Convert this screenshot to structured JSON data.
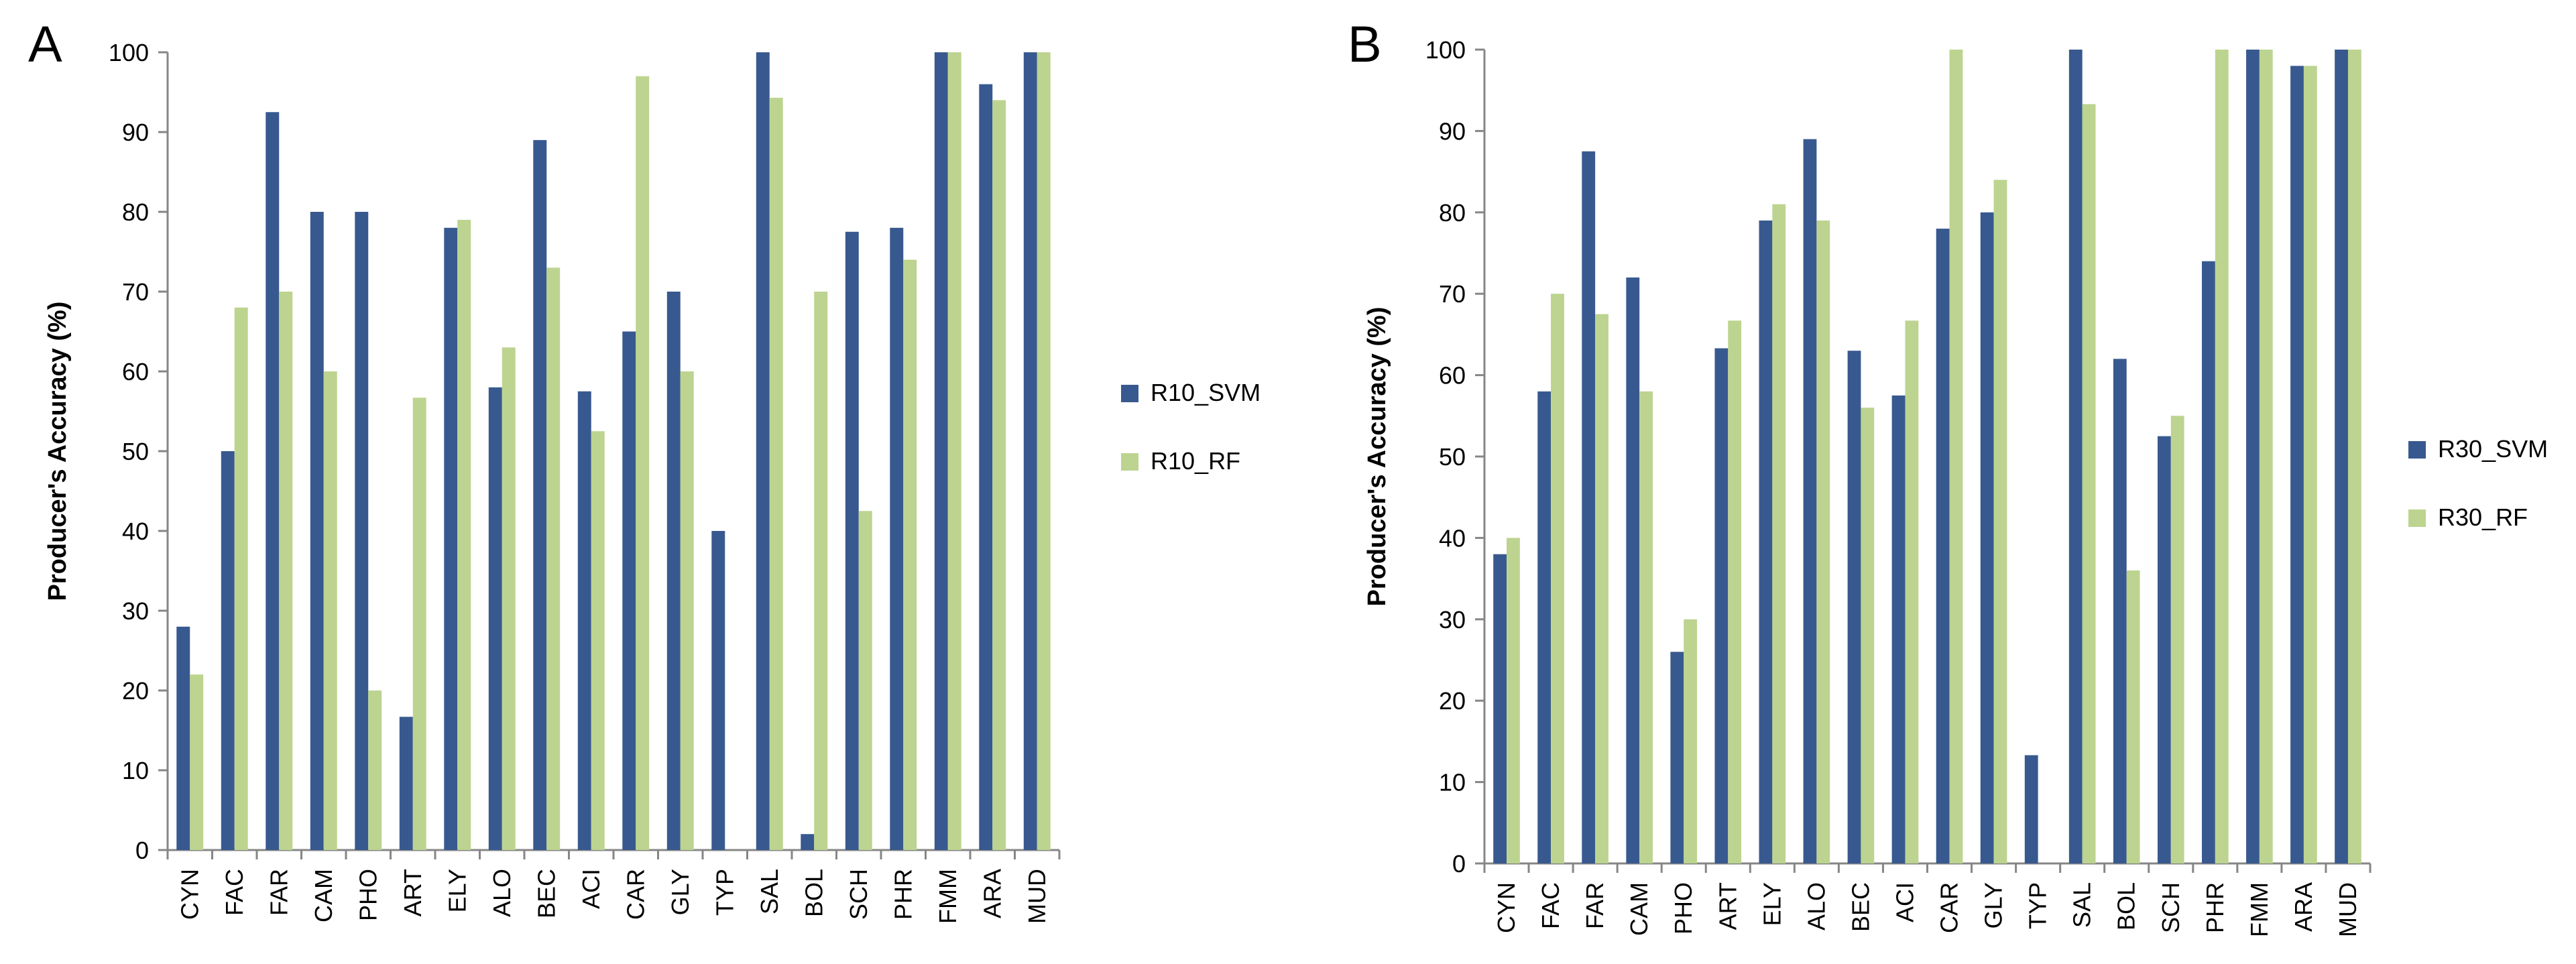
{
  "colors": {
    "svm": "#38598F",
    "rf": "#BCD48F",
    "axis": "#868686"
  },
  "chart_data": [
    {
      "panel": "A",
      "type": "bar",
      "ylabel": "Producer's Accuracy (%)",
      "xlabel": "",
      "ylim": [
        0,
        100
      ],
      "yticks": [
        0,
        10,
        20,
        30,
        40,
        50,
        60,
        70,
        80,
        90,
        100
      ],
      "legend_position": "right",
      "categories": [
        "CYN",
        "FAC",
        "FAR",
        "CAM",
        "PHO",
        "ART",
        "ELY",
        "ALO",
        "BEC",
        "ACI",
        "CAR",
        "GLY",
        "TYP",
        "SAL",
        "BOL",
        "SCH",
        "PHR",
        "FMM",
        "ARA",
        "MUD"
      ],
      "series": [
        {
          "name": "R10_SVM",
          "values": [
            28,
            50,
            92.5,
            80,
            80,
            16.7,
            78,
            58,
            89,
            57.5,
            65,
            70,
            40,
            100,
            2,
            77.5,
            78,
            100,
            96,
            100
          ]
        },
        {
          "name": "R10_RF",
          "values": [
            22,
            68,
            70,
            60,
            20,
            56.7,
            79,
            63,
            73,
            52.5,
            97,
            60,
            0,
            94.3,
            70,
            42.5,
            74,
            100,
            94,
            100
          ]
        }
      ]
    },
    {
      "panel": "B",
      "type": "bar",
      "ylabel": "Producer's Accuracy (%)",
      "xlabel": "",
      "ylim": [
        0,
        100
      ],
      "yticks": [
        0,
        10,
        20,
        30,
        40,
        50,
        60,
        70,
        80,
        90,
        100
      ],
      "legend_position": "right",
      "categories": [
        "CYN",
        "FAC",
        "FAR",
        "CAM",
        "PHO",
        "ART",
        "ELY",
        "ALO",
        "BEC",
        "ACI",
        "CAR",
        "GLY",
        "TYP",
        "SAL",
        "BOL",
        "SCH",
        "PHR",
        "FMM",
        "ARA",
        "MUD"
      ],
      "series": [
        {
          "name": "R30_SVM",
          "values": [
            38,
            58,
            87.5,
            72,
            26,
            63.3,
            79,
            89,
            63,
            57.5,
            78,
            80,
            13.3,
            100,
            62,
            52.5,
            74,
            100,
            98,
            100
          ]
        },
        {
          "name": "R30_RF",
          "values": [
            40,
            70,
            67.5,
            58,
            30,
            66.7,
            81,
            79,
            56,
            66.7,
            100,
            84,
            0,
            93.3,
            36,
            55,
            100,
            100,
            98,
            100
          ]
        }
      ]
    }
  ]
}
